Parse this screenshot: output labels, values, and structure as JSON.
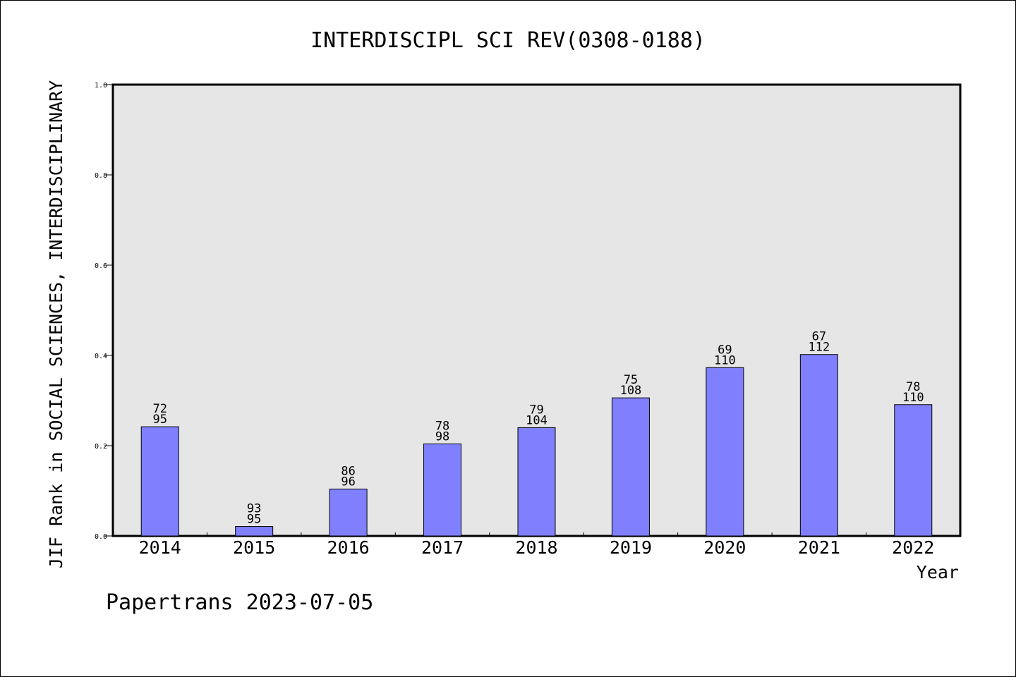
{
  "chart_data": {
    "type": "bar",
    "title": "INTERDISCIPL SCI REV(0308-0188)",
    "xlabel": "Year",
    "ylabel": "JIF Rank in SOCIAL SCIENCES, INTERDISCIPLINARY",
    "ylim": [
      0,
      1.0
    ],
    "yticks": [
      "0.0",
      "0.2",
      "0.4",
      "0.6",
      "0.8",
      "1.0"
    ],
    "categories": [
      "2014",
      "2015",
      "2016",
      "2017",
      "2018",
      "2019",
      "2020",
      "2021",
      "2022"
    ],
    "values": [
      0.242,
      0.021,
      0.104,
      0.204,
      0.24,
      0.306,
      0.373,
      0.402,
      0.291
    ],
    "labels_top": [
      "72",
      "93",
      "86",
      "78",
      "79",
      "75",
      "69",
      "67",
      "78"
    ],
    "labels_bottom": [
      "95",
      "95",
      "96",
      "98",
      "104",
      "108",
      "110",
      "112",
      "110"
    ],
    "bar_color": "#8080ff",
    "plot_background": "#e6e6e6",
    "grid": false
  },
  "footer": {
    "watermark": "Papertrans 2023-07-05"
  }
}
